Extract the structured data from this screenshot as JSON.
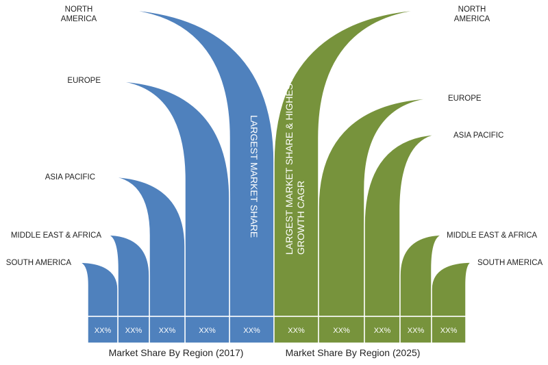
{
  "chart_data": {
    "type": "bar",
    "title": "",
    "colors": {
      "2017": "#4f81bd",
      "2025": "#77933c"
    },
    "left": {
      "caption": "Market Share By Region (2017)",
      "series": [
        {
          "name": "NORTH AMERICA",
          "label_lines": [
            "NORTH",
            "AMERICA"
          ],
          "value_label": "XX%",
          "rank": 5,
          "annotation": "LARGEST MARKET SHARE"
        },
        {
          "name": "EUROPE",
          "label_lines": [
            "EUROPE"
          ],
          "value_label": "XX%",
          "rank": 4
        },
        {
          "name": "ASIA PACIFIC",
          "label_lines": [
            "ASIA PACIFIC"
          ],
          "value_label": "XX%",
          "rank": 3
        },
        {
          "name": "MIDDLE EAST & AFRICA",
          "label_lines": [
            "MIDDLE EAST & AFRICA"
          ],
          "value_label": "XX%",
          "rank": 2
        },
        {
          "name": "SOUTH AMERICA",
          "label_lines": [
            "SOUTH AMERICA"
          ],
          "value_label": "XX%",
          "rank": 1
        }
      ]
    },
    "right": {
      "caption": "Market Share By Region (2025)",
      "series": [
        {
          "name": "NORTH AMERICA",
          "label_lines": [
            "NORTH",
            "AMERICA"
          ],
          "value_label": "XX%",
          "rank": 5,
          "annotation_lines": [
            "LARGEST MARKET SHARE & HIGHEST",
            "GROWTH CAGR"
          ]
        },
        {
          "name": "EUROPE",
          "label_lines": [
            "EUROPE"
          ],
          "value_label": "XX%",
          "rank": 4
        },
        {
          "name": "ASIA PACIFIC",
          "label_lines": [
            "ASIA PACIFIC"
          ],
          "value_label": "XX%",
          "rank": 3
        },
        {
          "name": "MIDDLE EAST & AFRICA",
          "label_lines": [
            "MIDDLE EAST & AFRICA"
          ],
          "value_label": "XX%",
          "rank": 2
        },
        {
          "name": "SOUTH AMERICA",
          "label_lines": [
            "SOUTH AMERICA"
          ],
          "value_label": "XX%",
          "rank": 1
        }
      ]
    }
  }
}
